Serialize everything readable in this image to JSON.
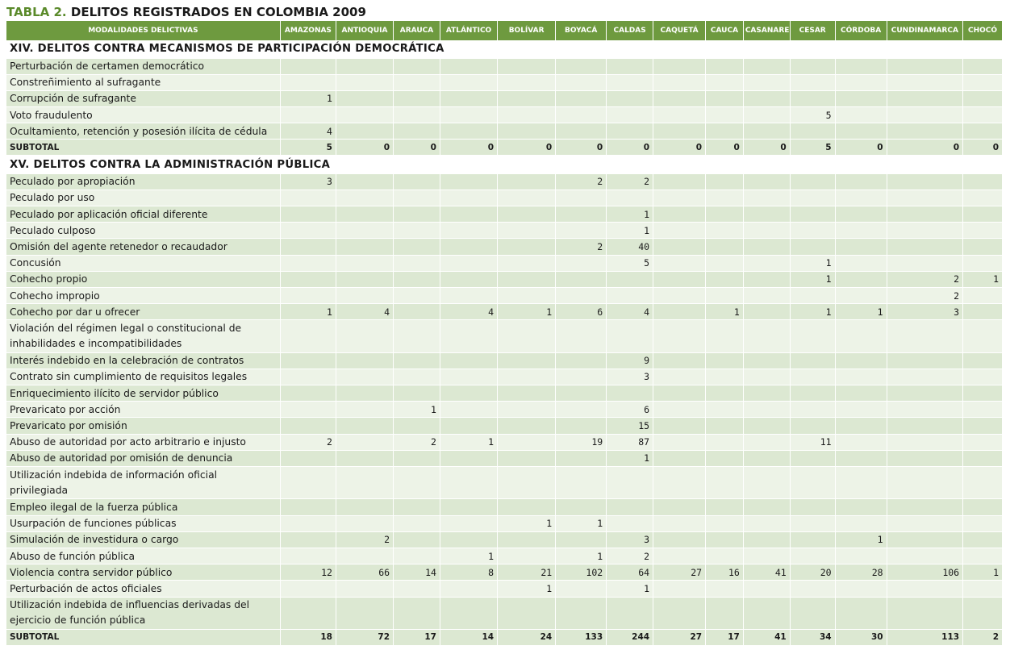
{
  "title": {
    "prefix": "TABLA 2.",
    "rest": "DELITOS REGISTRADOS EN COLOMBIA 2009"
  },
  "header": {
    "label_col": "MODALIDADES DELICTIVAS",
    "departments": [
      "AMAZONAS",
      "ANTIOQUIA",
      "ARAUCA",
      "ATLÁNTICO",
      "BOLÍVAR",
      "BOYACÁ",
      "CALDAS",
      "CAQUETÁ",
      "CAUCA",
      "CASANARE",
      "CESAR",
      "CÓRDOBA",
      "CUNDINAMARCA",
      "CHOCÓ"
    ]
  },
  "sections": [
    {
      "title": "XIV. DELITOS CONTRA MECANISMOS DE PARTICIPACIÓN DEMOCRÁTICA",
      "rows": [
        {
          "label": "Perturbación de certamen democrático",
          "values": [
            "",
            "",
            "",
            "",
            "",
            "",
            "",
            "",
            "",
            "",
            "",
            "",
            "",
            ""
          ]
        },
        {
          "label": "Constreñimiento al sufragante",
          "values": [
            "",
            "",
            "",
            "",
            "",
            "",
            "",
            "",
            "",
            "",
            "",
            "",
            "",
            ""
          ]
        },
        {
          "label": "Corrupción de sufragante",
          "values": [
            "1",
            "",
            "",
            "",
            "",
            "",
            "",
            "",
            "",
            "",
            "",
            "",
            "",
            ""
          ]
        },
        {
          "label": "Voto fraudulento",
          "values": [
            "",
            "",
            "",
            "",
            "",
            "",
            "",
            "",
            "",
            "",
            "5",
            "",
            "",
            ""
          ]
        },
        {
          "label": "Ocultamiento, retención y posesión ilícita de cédula",
          "values": [
            "4",
            "",
            "",
            "",
            "",
            "",
            "",
            "",
            "",
            "",
            "",
            "",
            "",
            ""
          ]
        }
      ],
      "subtotal": {
        "label": "SUBTOTAL",
        "values": [
          "5",
          "0",
          "0",
          "0",
          "0",
          "0",
          "0",
          "0",
          "0",
          "0",
          "5",
          "0",
          "0",
          "0"
        ]
      }
    },
    {
      "title": "XV. DELITOS CONTRA LA ADMINISTRACIÓN PÚBLICA",
      "rows": [
        {
          "label": "Peculado por apropiación",
          "values": [
            "3",
            "",
            "",
            "",
            "",
            "2",
            "2",
            "",
            "",
            "",
            "",
            "",
            "",
            ""
          ]
        },
        {
          "label": "Peculado por uso",
          "values": [
            "",
            "",
            "",
            "",
            "",
            "",
            "",
            "",
            "",
            "",
            "",
            "",
            "",
            ""
          ]
        },
        {
          "label": "Peculado por aplicación oficial diferente",
          "values": [
            "",
            "",
            "",
            "",
            "",
            "",
            "1",
            "",
            "",
            "",
            "",
            "",
            "",
            ""
          ]
        },
        {
          "label": "Peculado culposo",
          "values": [
            "",
            "",
            "",
            "",
            "",
            "",
            "1",
            "",
            "",
            "",
            "",
            "",
            "",
            ""
          ]
        },
        {
          "label": "Omisión del agente retenedor o recaudador",
          "values": [
            "",
            "",
            "",
            "",
            "",
            "2",
            "40",
            "",
            "",
            "",
            "",
            "",
            "",
            ""
          ]
        },
        {
          "label": "Concusión",
          "values": [
            "",
            "",
            "",
            "",
            "",
            "",
            "5",
            "",
            "",
            "",
            "1",
            "",
            "",
            ""
          ]
        },
        {
          "label": "Cohecho propio",
          "values": [
            "",
            "",
            "",
            "",
            "",
            "",
            "",
            "",
            "",
            "",
            "1",
            "",
            "2",
            "1"
          ]
        },
        {
          "label": "Cohecho impropio",
          "values": [
            "",
            "",
            "",
            "",
            "",
            "",
            "",
            "",
            "",
            "",
            "",
            "",
            "2",
            ""
          ]
        },
        {
          "label": "Cohecho por dar u ofrecer",
          "values": [
            "1",
            "4",
            "",
            "4",
            "1",
            "6",
            "4",
            "",
            "1",
            "",
            "1",
            "1",
            "3",
            ""
          ]
        },
        {
          "label": "Violación del régimen legal o constitucional de inhabilidades e incompatibilidades",
          "tall": true,
          "values": [
            "",
            "",
            "",
            "",
            "",
            "",
            "",
            "",
            "",
            "",
            "",
            "",
            "",
            ""
          ]
        },
        {
          "label": "Interés indebido en la celebración de contratos",
          "values": [
            "",
            "",
            "",
            "",
            "",
            "",
            "9",
            "",
            "",
            "",
            "",
            "",
            "",
            ""
          ]
        },
        {
          "label": "Contrato sin cumplimiento de requisitos legales",
          "values": [
            "",
            "",
            "",
            "",
            "",
            "",
            "3",
            "",
            "",
            "",
            "",
            "",
            "",
            ""
          ]
        },
        {
          "label": "Enriquecimiento ilícito de servidor público",
          "values": [
            "",
            "",
            "",
            "",
            "",
            "",
            "",
            "",
            "",
            "",
            "",
            "",
            "",
            ""
          ]
        },
        {
          "label": "Prevaricato por acción",
          "values": [
            "",
            "",
            "1",
            "",
            "",
            "",
            "6",
            "",
            "",
            "",
            "",
            "",
            "",
            ""
          ]
        },
        {
          "label": "Prevaricato por omisión",
          "values": [
            "",
            "",
            "",
            "",
            "",
            "",
            "15",
            "",
            "",
            "",
            "",
            "",
            "",
            ""
          ]
        },
        {
          "label": "Abuso de autoridad por acto arbitrario e injusto",
          "values": [
            "2",
            "",
            "2",
            "1",
            "",
            "19",
            "87",
            "",
            "",
            "",
            "11",
            "",
            "",
            ""
          ]
        },
        {
          "label": "Abuso de autoridad por omisión de denuncia",
          "values": [
            "",
            "",
            "",
            "",
            "",
            "",
            "1",
            "",
            "",
            "",
            "",
            "",
            "",
            ""
          ]
        },
        {
          "label": "Utilización indebida de información oficial privilegiada",
          "tall": true,
          "values": [
            "",
            "",
            "",
            "",
            "",
            "",
            "",
            "",
            "",
            "",
            "",
            "",
            "",
            ""
          ]
        },
        {
          "label": "Empleo ilegal de la fuerza pública",
          "values": [
            "",
            "",
            "",
            "",
            "",
            "",
            "",
            "",
            "",
            "",
            "",
            "",
            "",
            ""
          ]
        },
        {
          "label": "Usurpación de funciones públicas",
          "values": [
            "",
            "",
            "",
            "",
            "1",
            "1",
            "",
            "",
            "",
            "",
            "",
            "",
            "",
            ""
          ]
        },
        {
          "label": "Simulación de investidura o cargo",
          "values": [
            "",
            "2",
            "",
            "",
            "",
            "",
            "3",
            "",
            "",
            "",
            "",
            "1",
            "",
            ""
          ]
        },
        {
          "label": "Abuso de función pública",
          "values": [
            "",
            "",
            "",
            "1",
            "",
            "1",
            "2",
            "",
            "",
            "",
            "",
            "",
            "",
            ""
          ]
        },
        {
          "label": "Violencia contra servidor público",
          "values": [
            "12",
            "66",
            "14",
            "8",
            "21",
            "102",
            "64",
            "27",
            "16",
            "41",
            "20",
            "28",
            "106",
            "1"
          ]
        },
        {
          "label": "Perturbación de actos oficiales",
          "values": [
            "",
            "",
            "",
            "",
            "1",
            "",
            "1",
            "",
            "",
            "",
            "",
            "",
            "",
            ""
          ]
        },
        {
          "label": "Utilización indebida de influencias derivadas del ejercicio de función pública",
          "tall": true,
          "values": [
            "",
            "",
            "",
            "",
            "",
            "",
            "",
            "",
            "",
            "",
            "",
            "",
            "",
            ""
          ]
        }
      ],
      "subtotal": {
        "label": "SUBTOTAL",
        "values": [
          "18",
          "72",
          "17",
          "14",
          "24",
          "133",
          "244",
          "27",
          "17",
          "41",
          "34",
          "30",
          "113",
          "2"
        ]
      }
    }
  ]
}
